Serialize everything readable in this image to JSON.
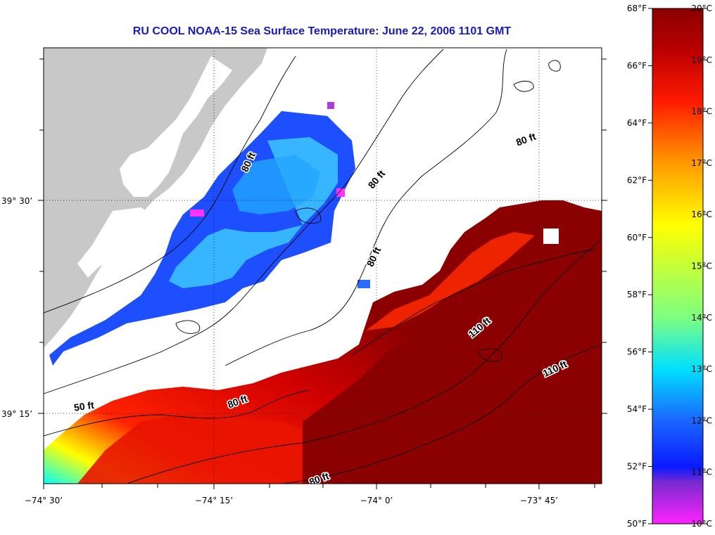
{
  "title": "RU COOL  NOAA-15  Sea Surface Temperature:  June 22, 2006 1101 GMT",
  "map": {
    "lon_ticks": [
      "−74° 30’",
      "−74° 15’",
      "−74° 0’",
      "−73° 45’"
    ],
    "lat_ticks": [
      "39° 30’",
      "39° 15’"
    ],
    "contour_labels": [
      "80 ft",
      "80 ft",
      "80 ft",
      "80 ft",
      "80 ft",
      "50 ft",
      "110 ft",
      "110 ft",
      "80 ft"
    ],
    "colors": {
      "land": "#c8c8c8",
      "ocean_cloud": "#ffffff",
      "contour": "#000000"
    }
  },
  "colorbar": {
    "f_labels": [
      "68°F",
      "66°F",
      "64°F",
      "62°F",
      "60°F",
      "58°F",
      "56°F",
      "54°F",
      "52°F",
      "50°F"
    ],
    "c_labels": [
      "20°C",
      "19°C",
      "18°C",
      "17°C",
      "16°C",
      "15°C",
      "14°C",
      "13°C",
      "12°C",
      "11°C",
      "10°C"
    ],
    "range_c": [
      10,
      20
    ],
    "stops": [
      "#ff22ff",
      "#7a2ad0",
      "#0a1aff",
      "#1a66ff",
      "#00e0ff",
      "#7dff80",
      "#ffff00",
      "#ff9900",
      "#ff1a00",
      "#b80000",
      "#8b0000"
    ]
  }
}
